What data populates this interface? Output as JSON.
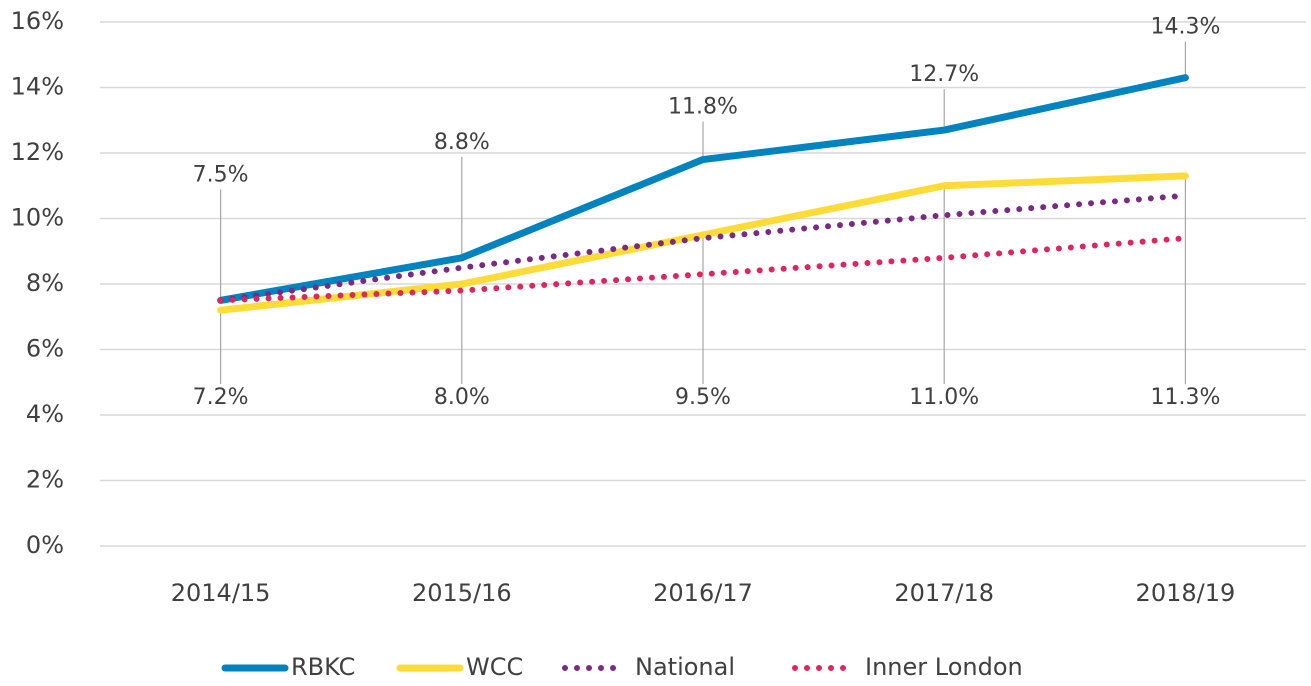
{
  "chart_data": {
    "type": "line",
    "categories": [
      "2014/15",
      "2015/16",
      "2016/17",
      "2017/18",
      "2018/19"
    ],
    "series": [
      {
        "name": "RBKC",
        "color": "#0083be",
        "style": "solid",
        "values": [
          7.5,
          8.8,
          11.8,
          12.7,
          14.3
        ],
        "value_labels": [
          "7.5%",
          "8.8%",
          "11.8%",
          "12.7%",
          "14.3%"
        ]
      },
      {
        "name": "WCC",
        "color": "#fddc3a",
        "style": "solid",
        "values": [
          7.2,
          8.0,
          9.5,
          11.0,
          11.3
        ],
        "value_labels": [
          "7.2%",
          "8.0%",
          "9.5%",
          "11.0%",
          "11.3%"
        ]
      },
      {
        "name": "National",
        "color": "#7b2a83",
        "style": "dotted",
        "values": [
          7.5,
          8.5,
          9.4,
          10.1,
          10.7
        ]
      },
      {
        "name": "Inner London",
        "color": "#e0245e",
        "style": "dotted",
        "values": [
          7.5,
          7.8,
          8.3,
          8.8,
          9.4
        ]
      }
    ],
    "ylim": [
      0,
      16
    ],
    "yticks": [
      {
        "value": 0,
        "label": "0%"
      },
      {
        "value": 2,
        "label": "2%"
      },
      {
        "value": 4,
        "label": "4%"
      },
      {
        "value": 6,
        "label": "6%"
      },
      {
        "value": 8,
        "label": "8%"
      },
      {
        "value": 10,
        "label": "10%"
      },
      {
        "value": 12,
        "label": "12%"
      },
      {
        "value": 14,
        "label": "14%"
      },
      {
        "value": 16,
        "label": "16%"
      }
    ],
    "grid": true,
    "legend": "bottom"
  }
}
